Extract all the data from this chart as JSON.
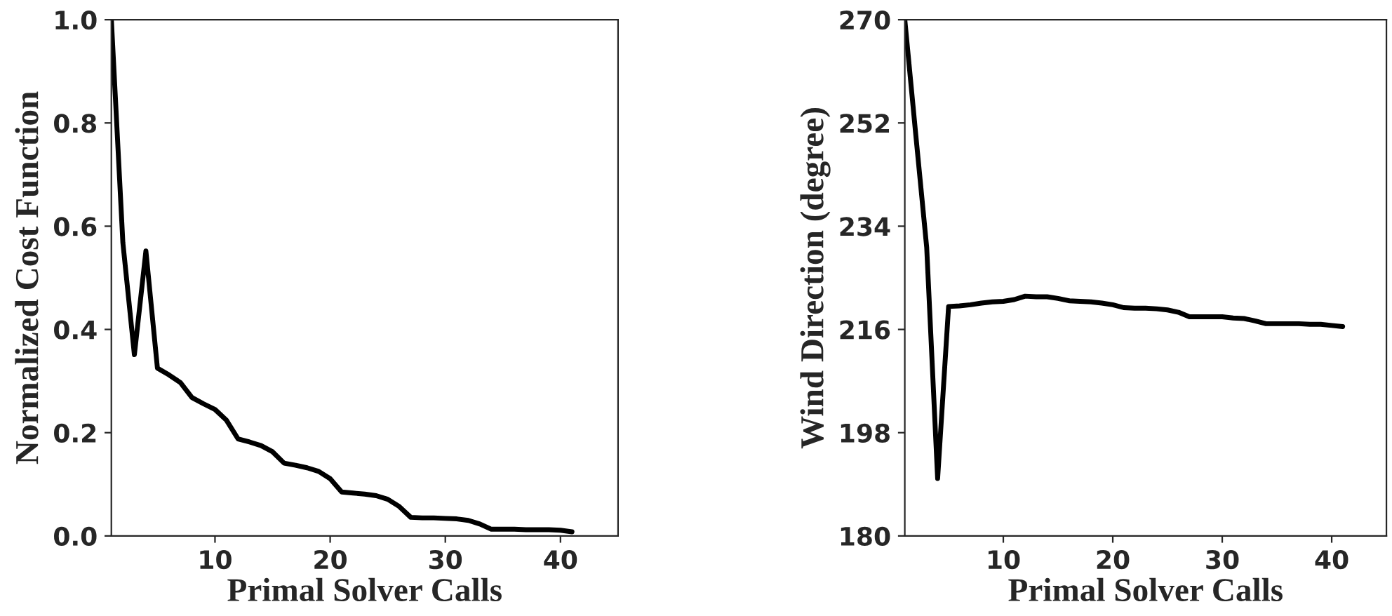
{
  "chart_data": [
    {
      "type": "line",
      "xlabel": "Primal Solver Calls",
      "ylabel": "Normalized Cost Function",
      "xlim": [
        1,
        45
      ],
      "xticks": [
        10,
        20,
        30,
        40
      ],
      "ylim": [
        0,
        1.0
      ],
      "yticks": [
        {
          "value": 0,
          "label": "0.0"
        },
        {
          "value": 0.2,
          "label": "0.2"
        },
        {
          "value": 0.4,
          "label": "0.4"
        },
        {
          "value": 0.6,
          "label": "0.6"
        },
        {
          "value": 0.8,
          "label": "0.8"
        },
        {
          "value": 1.0,
          "label": "1.0"
        }
      ],
      "grid": false,
      "legend": false,
      "x": [
        1,
        2,
        3,
        4,
        5,
        6,
        7,
        8,
        9,
        10,
        11,
        12,
        13,
        14,
        15,
        16,
        17,
        18,
        19,
        20,
        21,
        22,
        23,
        24,
        25,
        26,
        27,
        28,
        29,
        30,
        31,
        32,
        33,
        34,
        35,
        36,
        37,
        38,
        39,
        40,
        41
      ],
      "series": [
        {
          "color": "#000000",
          "values": [
            1.0,
            0.568,
            0.351,
            0.552,
            0.325,
            0.312,
            0.297,
            0.268,
            0.256,
            0.245,
            0.224,
            0.188,
            0.182,
            0.175,
            0.163,
            0.141,
            0.137,
            0.132,
            0.125,
            0.111,
            0.085,
            0.083,
            0.081,
            0.078,
            0.071,
            0.057,
            0.036,
            0.035,
            0.035,
            0.034,
            0.033,
            0.03,
            0.023,
            0.013,
            0.013,
            0.013,
            0.012,
            0.012,
            0.012,
            0.011,
            0.008
          ]
        }
      ]
    },
    {
      "type": "line",
      "xlabel": "Primal Solver Calls",
      "ylabel": "Wind Direction (degree)",
      "xlim": [
        1,
        45
      ],
      "xticks": [
        10,
        20,
        30,
        40
      ],
      "ylim": [
        180,
        270
      ],
      "yticks": [
        180,
        198,
        216,
        234,
        252,
        270
      ],
      "grid": false,
      "legend": false,
      "x": [
        1,
        2,
        3,
        4,
        5,
        6,
        7,
        8,
        9,
        10,
        11,
        12,
        13,
        14,
        15,
        16,
        17,
        18,
        19,
        20,
        21,
        22,
        23,
        24,
        25,
        26,
        27,
        28,
        29,
        30,
        31,
        32,
        33,
        34,
        35,
        36,
        37,
        38,
        39,
        40,
        41
      ],
      "series": [
        {
          "color": "#000000",
          "values": [
            270,
            250.0,
            230.3,
            190.0,
            220.0,
            220.1,
            220.3,
            220.6,
            220.8,
            220.9,
            221.2,
            221.8,
            221.7,
            221.7,
            221.4,
            221.0,
            220.9,
            220.8,
            220.6,
            220.3,
            219.8,
            219.7,
            219.7,
            219.6,
            219.4,
            219.0,
            218.2,
            218.2,
            218.2,
            218.2,
            218.0,
            217.9,
            217.5,
            217.0,
            217.0,
            217.0,
            217.0,
            216.9,
            216.9,
            216.7,
            216.5
          ]
        }
      ]
    }
  ]
}
